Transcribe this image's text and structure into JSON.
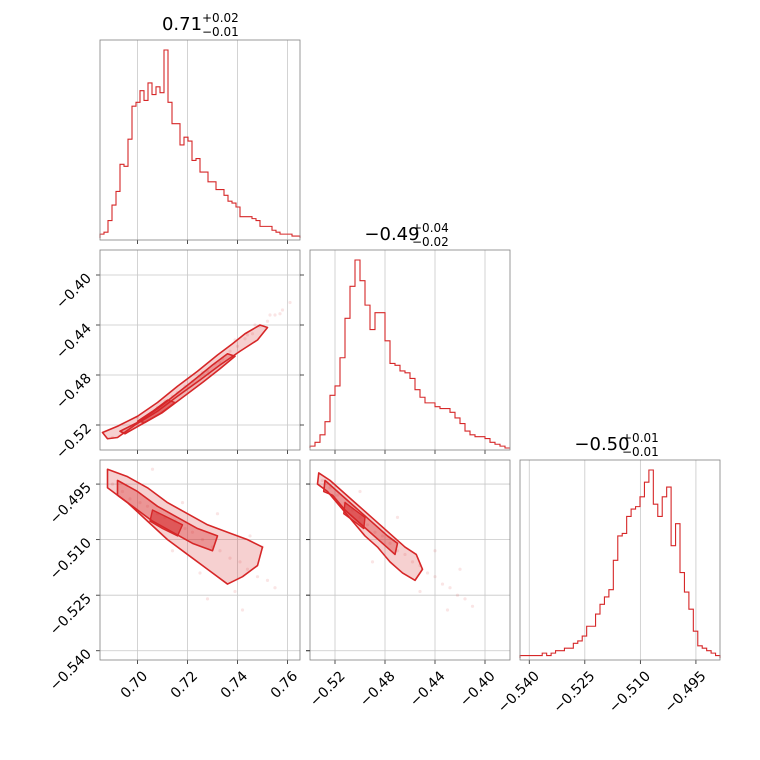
{
  "chart_data": {
    "type": "corner",
    "color": "#d62728",
    "grid": true,
    "parameters": [
      {
        "title": {
          "main": "0.71",
          "sup": "+0.02",
          "sub": "−0.01"
        },
        "range": [
          0.685,
          0.765
        ],
        "ticks": [
          0.7,
          0.72,
          0.74,
          0.76
        ],
        "tick_labels": [
          "0.70",
          "0.72",
          "0.74",
          "0.76"
        ],
        "hist": [
          2,
          3,
          9,
          17,
          24,
          38,
          37,
          51,
          68,
          70,
          76,
          71,
          80,
          74,
          78,
          75,
          97,
          70,
          59,
          59,
          48,
          52,
          50,
          40,
          41,
          34,
          34,
          29,
          29,
          25,
          25,
          22,
          19,
          18,
          16,
          11,
          11,
          11,
          10,
          9,
          6,
          6,
          6,
          4,
          3,
          2,
          2,
          2,
          1,
          1
        ]
      },
      {
        "title": {
          "main": "−0.49",
          "sup": "+0.04",
          "sub": "−0.02"
        },
        "range": [
          -0.54,
          -0.38
        ],
        "ticks": [
          -0.52,
          -0.48,
          -0.44,
          -0.4
        ],
        "tick_labels": [
          "−0.52",
          "−0.48",
          "−0.44",
          "−0.40"
        ],
        "hist": [
          1,
          3,
          7,
          14,
          28,
          33,
          48,
          69,
          86,
          100,
          89,
          76,
          63,
          72,
          72,
          57,
          45,
          44,
          41,
          40,
          37,
          31,
          27,
          24,
          24,
          22,
          21,
          21,
          19,
          16,
          13,
          9,
          7,
          6,
          6,
          5,
          3,
          2,
          1,
          0
        ]
      },
      {
        "title": {
          "main": "−0.50",
          "sup": "+0.01",
          "sub": "−0.01"
        },
        "range": [
          -0.5425,
          -0.4885
        ],
        "ticks": [
          -0.54,
          -0.525,
          -0.51,
          -0.495
        ],
        "tick_labels": [
          "−0.540",
          "−0.525",
          "−0.510",
          "−0.495"
        ],
        "hist": [
          1,
          1,
          1,
          1,
          1,
          2,
          1,
          2,
          3,
          3,
          4,
          4,
          6,
          7,
          9,
          13,
          13,
          18,
          22,
          25,
          28,
          40,
          50,
          51,
          58,
          61,
          62,
          66,
          72,
          77,
          63,
          58,
          66,
          70,
          46,
          55,
          35,
          27,
          20,
          11,
          5,
          4,
          3,
          2,
          1
        ]
      }
    ],
    "pairs": [
      {
        "x": 0,
        "y": 1,
        "samples": [
          [
            0.69,
            -0.53
          ],
          [
            0.694,
            -0.526
          ],
          [
            0.698,
            -0.521
          ],
          [
            0.7,
            -0.519
          ],
          [
            0.703,
            -0.515
          ],
          [
            0.706,
            -0.511
          ],
          [
            0.708,
            -0.506
          ],
          [
            0.711,
            -0.501
          ],
          [
            0.714,
            -0.497
          ],
          [
            0.716,
            -0.494
          ],
          [
            0.719,
            -0.489
          ],
          [
            0.722,
            -0.485
          ],
          [
            0.725,
            -0.481
          ],
          [
            0.728,
            -0.477
          ],
          [
            0.731,
            -0.471
          ],
          [
            0.734,
            -0.467
          ],
          [
            0.737,
            -0.461
          ],
          [
            0.74,
            -0.457
          ],
          [
            0.743,
            -0.451
          ],
          [
            0.746,
            -0.447
          ],
          [
            0.749,
            -0.441
          ],
          [
            0.752,
            -0.437
          ],
          [
            0.755,
            -0.432
          ],
          [
            0.758,
            -0.428
          ],
          [
            0.761,
            -0.422
          ],
          [
            0.747,
            -0.44
          ],
          [
            0.753,
            -0.432
          ],
          [
            0.739,
            -0.452
          ],
          [
            0.744,
            -0.448
          ],
          [
            0.7,
            -0.514
          ],
          [
            0.712,
            -0.502
          ],
          [
            0.726,
            -0.478
          ],
          [
            0.733,
            -0.47
          ],
          [
            0.757,
            -0.431
          ]
        ],
        "contour_outer": [
          [
            0.688,
            -0.531
          ],
          [
            0.686,
            -0.526
          ],
          [
            0.692,
            -0.521
          ],
          [
            0.7,
            -0.513
          ],
          [
            0.708,
            -0.502
          ],
          [
            0.716,
            -0.489
          ],
          [
            0.724,
            -0.477
          ],
          [
            0.732,
            -0.464
          ],
          [
            0.738,
            -0.455
          ],
          [
            0.743,
            -0.447
          ],
          [
            0.749,
            -0.44
          ],
          [
            0.752,
            -0.442
          ],
          [
            0.748,
            -0.452
          ],
          [
            0.741,
            -0.461
          ],
          [
            0.733,
            -0.472
          ],
          [
            0.725,
            -0.484
          ],
          [
            0.716,
            -0.497
          ],
          [
            0.708,
            -0.509
          ],
          [
            0.699,
            -0.52
          ],
          [
            0.692,
            -0.53
          ]
        ],
        "contour_inner": [
          [
            0.693,
            -0.525
          ],
          [
            0.7,
            -0.518
          ],
          [
            0.708,
            -0.507
          ],
          [
            0.715,
            -0.496
          ],
          [
            0.722,
            -0.485
          ],
          [
            0.73,
            -0.472
          ],
          [
            0.736,
            -0.463
          ],
          [
            0.739,
            -0.465
          ],
          [
            0.733,
            -0.475
          ],
          [
            0.726,
            -0.486
          ],
          [
            0.718,
            -0.498
          ],
          [
            0.71,
            -0.51
          ],
          [
            0.702,
            -0.519
          ],
          [
            0.695,
            -0.527
          ]
        ],
        "contour_core": [
          [
            0.7,
            -0.517
          ],
          [
            0.706,
            -0.509
          ],
          [
            0.712,
            -0.5
          ],
          [
            0.715,
            -0.502
          ],
          [
            0.709,
            -0.511
          ],
          [
            0.703,
            -0.518
          ]
        ]
      },
      {
        "x": 0,
        "y": 2,
        "samples": [
          [
            0.69,
            -0.495
          ],
          [
            0.694,
            -0.497
          ],
          [
            0.697,
            -0.499
          ],
          [
            0.701,
            -0.5
          ],
          [
            0.704,
            -0.501
          ],
          [
            0.708,
            -0.503
          ],
          [
            0.711,
            -0.504
          ],
          [
            0.715,
            -0.505
          ],
          [
            0.719,
            -0.507
          ],
          [
            0.722,
            -0.508
          ],
          [
            0.726,
            -0.51
          ],
          [
            0.73,
            -0.512
          ],
          [
            0.733,
            -0.513
          ],
          [
            0.737,
            -0.515
          ],
          [
            0.741,
            -0.516
          ],
          [
            0.744,
            -0.518
          ],
          [
            0.748,
            -0.52
          ],
          [
            0.752,
            -0.521
          ],
          [
            0.755,
            -0.523
          ],
          [
            0.739,
            -0.524
          ],
          [
            0.745,
            -0.509
          ],
          [
            0.725,
            -0.519
          ],
          [
            0.732,
            -0.503
          ],
          [
            0.714,
            -0.513
          ],
          [
            0.706,
            -0.491
          ],
          [
            0.75,
            -0.512
          ],
          [
            0.728,
            -0.526
          ],
          [
            0.718,
            -0.5
          ],
          [
            0.742,
            -0.529
          ]
        ],
        "contour_outer": [
          [
            0.688,
            -0.491
          ],
          [
            0.696,
            -0.493
          ],
          [
            0.704,
            -0.496
          ],
          [
            0.712,
            -0.5
          ],
          [
            0.72,
            -0.503
          ],
          [
            0.728,
            -0.506
          ],
          [
            0.736,
            -0.508
          ],
          [
            0.744,
            -0.51
          ],
          [
            0.75,
            -0.512
          ],
          [
            0.748,
            -0.517
          ],
          [
            0.742,
            -0.52
          ],
          [
            0.736,
            -0.522
          ],
          [
            0.728,
            -0.518
          ],
          [
            0.72,
            -0.514
          ],
          [
            0.712,
            -0.51
          ],
          [
            0.704,
            -0.505
          ],
          [
            0.696,
            -0.5
          ],
          [
            0.688,
            -0.496
          ]
        ],
        "contour_inner": [
          [
            0.692,
            -0.494
          ],
          [
            0.7,
            -0.497
          ],
          [
            0.708,
            -0.501
          ],
          [
            0.716,
            -0.504
          ],
          [
            0.724,
            -0.507
          ],
          [
            0.732,
            -0.509
          ],
          [
            0.73,
            -0.513
          ],
          [
            0.722,
            -0.511
          ],
          [
            0.714,
            -0.508
          ],
          [
            0.706,
            -0.505
          ],
          [
            0.698,
            -0.501
          ],
          [
            0.692,
            -0.498
          ]
        ],
        "contour_core": [
          [
            0.706,
            -0.502
          ],
          [
            0.712,
            -0.504
          ],
          [
            0.718,
            -0.506
          ],
          [
            0.716,
            -0.509
          ],
          [
            0.71,
            -0.507
          ],
          [
            0.705,
            -0.505
          ]
        ]
      },
      {
        "x": 1,
        "y": 2,
        "samples": [
          [
            -0.53,
            -0.494
          ],
          [
            -0.524,
            -0.496
          ],
          [
            -0.518,
            -0.498
          ],
          [
            -0.512,
            -0.5
          ],
          [
            -0.506,
            -0.502
          ],
          [
            -0.5,
            -0.504
          ],
          [
            -0.494,
            -0.506
          ],
          [
            -0.488,
            -0.508
          ],
          [
            -0.482,
            -0.509
          ],
          [
            -0.476,
            -0.511
          ],
          [
            -0.47,
            -0.513
          ],
          [
            -0.464,
            -0.514
          ],
          [
            -0.458,
            -0.516
          ],
          [
            -0.452,
            -0.517
          ],
          [
            -0.446,
            -0.519
          ],
          [
            -0.44,
            -0.52
          ],
          [
            -0.434,
            -0.522
          ],
          [
            -0.428,
            -0.523
          ],
          [
            -0.422,
            -0.525
          ],
          [
            -0.416,
            -0.526
          ],
          [
            -0.41,
            -0.528
          ],
          [
            -0.44,
            -0.513
          ],
          [
            -0.452,
            -0.524
          ],
          [
            -0.47,
            -0.504
          ],
          [
            -0.49,
            -0.516
          ],
          [
            -0.42,
            -0.518
          ],
          [
            -0.5,
            -0.497
          ],
          [
            -0.43,
            -0.529
          ]
        ],
        "contour_outer": [
          [
            -0.533,
            -0.492
          ],
          [
            -0.524,
            -0.494
          ],
          [
            -0.514,
            -0.497
          ],
          [
            -0.504,
            -0.5
          ],
          [
            -0.494,
            -0.503
          ],
          [
            -0.484,
            -0.506
          ],
          [
            -0.474,
            -0.509
          ],
          [
            -0.464,
            -0.512
          ],
          [
            -0.455,
            -0.514
          ],
          [
            -0.45,
            -0.518
          ],
          [
            -0.456,
            -0.521
          ],
          [
            -0.466,
            -0.519
          ],
          [
            -0.476,
            -0.516
          ],
          [
            -0.486,
            -0.512
          ],
          [
            -0.496,
            -0.509
          ],
          [
            -0.506,
            -0.505
          ],
          [
            -0.516,
            -0.501
          ],
          [
            -0.526,
            -0.497
          ],
          [
            -0.534,
            -0.495
          ]
        ],
        "contour_inner": [
          [
            -0.528,
            -0.494
          ],
          [
            -0.518,
            -0.497
          ],
          [
            -0.508,
            -0.5
          ],
          [
            -0.498,
            -0.503
          ],
          [
            -0.488,
            -0.506
          ],
          [
            -0.478,
            -0.509
          ],
          [
            -0.47,
            -0.511
          ],
          [
            -0.472,
            -0.514
          ],
          [
            -0.482,
            -0.511
          ],
          [
            -0.492,
            -0.508
          ],
          [
            -0.502,
            -0.505
          ],
          [
            -0.512,
            -0.502
          ],
          [
            -0.522,
            -0.498
          ],
          [
            -0.529,
            -0.497
          ]
        ],
        "contour_core": [
          [
            -0.512,
            -0.5
          ],
          [
            -0.504,
            -0.502
          ],
          [
            -0.496,
            -0.504
          ],
          [
            -0.497,
            -0.507
          ],
          [
            -0.505,
            -0.505
          ],
          [
            -0.513,
            -0.503
          ]
        ]
      }
    ]
  }
}
